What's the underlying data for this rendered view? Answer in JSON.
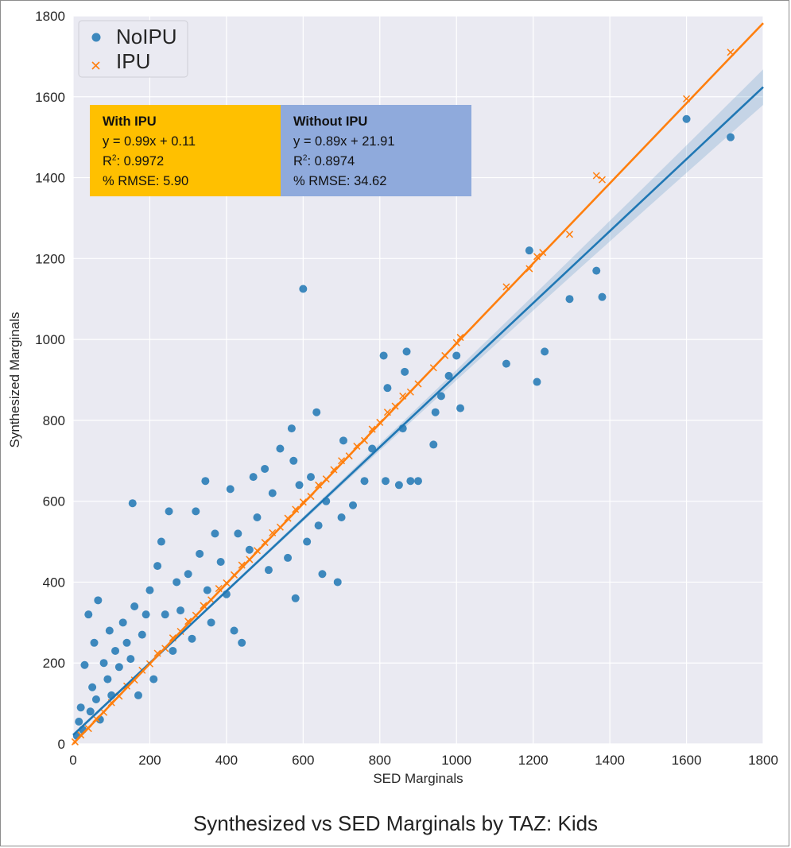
{
  "chart_data": {
    "type": "scatter",
    "xlabel": "SED Marginals",
    "ylabel": "Synthesized Marginals",
    "xlim": [
      0,
      1800
    ],
    "ylim": [
      0,
      1800
    ],
    "xticks": [
      0,
      200,
      400,
      600,
      800,
      1000,
      1200,
      1400,
      1600,
      1800
    ],
    "yticks": [
      0,
      200,
      400,
      600,
      800,
      1000,
      1200,
      1400,
      1600,
      1800
    ],
    "grid": true,
    "legend_position": "top-left",
    "series": [
      {
        "name": "NoIPU",
        "marker": "circle",
        "color": "#1f77b4",
        "fit": {
          "slope": 0.89,
          "intercept": 21.91
        },
        "points": [
          [
            10,
            20
          ],
          [
            15,
            55
          ],
          [
            20,
            90
          ],
          [
            25,
            35
          ],
          [
            30,
            195
          ],
          [
            40,
            320
          ],
          [
            45,
            80
          ],
          [
            50,
            140
          ],
          [
            55,
            250
          ],
          [
            60,
            110
          ],
          [
            65,
            355
          ],
          [
            70,
            60
          ],
          [
            80,
            200
          ],
          [
            90,
            160
          ],
          [
            95,
            280
          ],
          [
            100,
            120
          ],
          [
            110,
            230
          ],
          [
            120,
            190
          ],
          [
            130,
            300
          ],
          [
            140,
            250
          ],
          [
            150,
            210
          ],
          [
            155,
            595
          ],
          [
            160,
            340
          ],
          [
            170,
            120
          ],
          [
            180,
            270
          ],
          [
            190,
            320
          ],
          [
            200,
            380
          ],
          [
            210,
            160
          ],
          [
            220,
            440
          ],
          [
            230,
            500
          ],
          [
            240,
            320
          ],
          [
            250,
            575
          ],
          [
            260,
            230
          ],
          [
            270,
            400
          ],
          [
            280,
            330
          ],
          [
            300,
            420
          ],
          [
            310,
            260
          ],
          [
            320,
            575
          ],
          [
            330,
            470
          ],
          [
            345,
            650
          ],
          [
            350,
            380
          ],
          [
            360,
            300
          ],
          [
            370,
            520
          ],
          [
            385,
            450
          ],
          [
            400,
            370
          ],
          [
            410,
            630
          ],
          [
            420,
            280
          ],
          [
            430,
            520
          ],
          [
            440,
            250
          ],
          [
            460,
            480
          ],
          [
            470,
            660
          ],
          [
            480,
            560
          ],
          [
            500,
            680
          ],
          [
            510,
            430
          ],
          [
            520,
            620
          ],
          [
            540,
            730
          ],
          [
            560,
            460
          ],
          [
            570,
            780
          ],
          [
            575,
            700
          ],
          [
            580,
            360
          ],
          [
            590,
            640
          ],
          [
            600,
            1125
          ],
          [
            610,
            500
          ],
          [
            620,
            660
          ],
          [
            635,
            820
          ],
          [
            640,
            540
          ],
          [
            650,
            420
          ],
          [
            660,
            600
          ],
          [
            690,
            400
          ],
          [
            700,
            560
          ],
          [
            705,
            750
          ],
          [
            730,
            590
          ],
          [
            760,
            650
          ],
          [
            780,
            730
          ],
          [
            810,
            960
          ],
          [
            815,
            650
          ],
          [
            820,
            880
          ],
          [
            850,
            640
          ],
          [
            860,
            780
          ],
          [
            865,
            920
          ],
          [
            870,
            970
          ],
          [
            880,
            650
          ],
          [
            900,
            650
          ],
          [
            940,
            740
          ],
          [
            945,
            820
          ],
          [
            960,
            860
          ],
          [
            980,
            910
          ],
          [
            1000,
            960
          ],
          [
            1010,
            830
          ],
          [
            1130,
            940
          ],
          [
            1190,
            1220
          ],
          [
            1210,
            895
          ],
          [
            1230,
            970
          ],
          [
            1295,
            1100
          ],
          [
            1365,
            1170
          ],
          [
            1380,
            1105
          ],
          [
            1600,
            1545
          ],
          [
            1715,
            1500
          ]
        ]
      },
      {
        "name": "IPU",
        "marker": "x",
        "color": "#ff7f0e",
        "fit": {
          "slope": 0.99,
          "intercept": 0.11
        },
        "points": [
          [
            5,
            5
          ],
          [
            20,
            22
          ],
          [
            40,
            38
          ],
          [
            60,
            62
          ],
          [
            80,
            78
          ],
          [
            100,
            102
          ],
          [
            120,
            118
          ],
          [
            140,
            143
          ],
          [
            160,
            158
          ],
          [
            180,
            182
          ],
          [
            200,
            198
          ],
          [
            220,
            224
          ],
          [
            240,
            236
          ],
          [
            260,
            262
          ],
          [
            280,
            278
          ],
          [
            300,
            303
          ],
          [
            320,
            318
          ],
          [
            340,
            342
          ],
          [
            360,
            356
          ],
          [
            380,
            384
          ],
          [
            400,
            398
          ],
          [
            420,
            418
          ],
          [
            440,
            442
          ],
          [
            460,
            456
          ],
          [
            480,
            478
          ],
          [
            500,
            498
          ],
          [
            520,
            522
          ],
          [
            540,
            536
          ],
          [
            560,
            558
          ],
          [
            580,
            580
          ],
          [
            600,
            598
          ],
          [
            620,
            612
          ],
          [
            640,
            640
          ],
          [
            660,
            655
          ],
          [
            680,
            678
          ],
          [
            700,
            700
          ],
          [
            720,
            712
          ],
          [
            740,
            736
          ],
          [
            760,
            750
          ],
          [
            780,
            778
          ],
          [
            800,
            795
          ],
          [
            820,
            820
          ],
          [
            840,
            835
          ],
          [
            860,
            860
          ],
          [
            880,
            870
          ],
          [
            900,
            890
          ],
          [
            940,
            930
          ],
          [
            970,
            960
          ],
          [
            1000,
            992
          ],
          [
            1010,
            1005
          ],
          [
            1130,
            1130
          ],
          [
            1190,
            1175
          ],
          [
            1210,
            1205
          ],
          [
            1225,
            1215
          ],
          [
            1295,
            1260
          ],
          [
            1365,
            1405
          ],
          [
            1380,
            1395
          ],
          [
            1600,
            1595
          ],
          [
            1715,
            1710
          ]
        ]
      }
    ]
  },
  "annotations": {
    "with_ipu": {
      "title": "With IPU",
      "equation": "y = 0.99x + 0.11",
      "r2_label": "R",
      "r2_sup": "2",
      "r2_value": ": 0.9972",
      "rmse": "% RMSE: 5.90",
      "color": "#ffc000"
    },
    "without_ipu": {
      "title": "Without IPU",
      "equation": "y = 0.89x + 21.91",
      "r2_label": "R",
      "r2_sup": "2",
      "r2_value": ": 0.8974",
      "rmse": "% RMSE: 34.62",
      "color": "#8faadc"
    }
  },
  "caption": "Synthesized vs SED Marginals by TAZ: Kids"
}
